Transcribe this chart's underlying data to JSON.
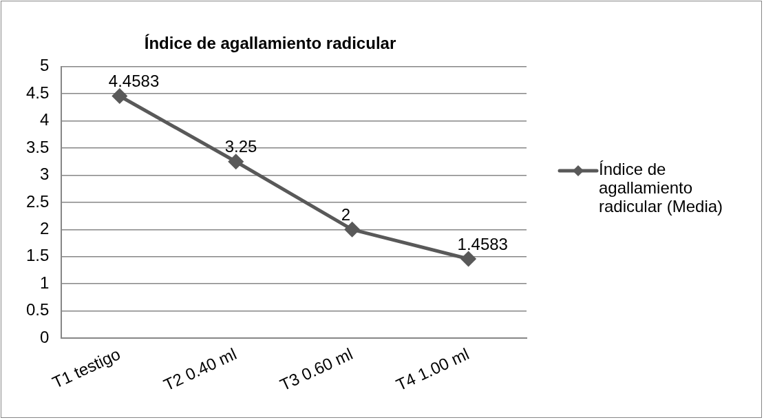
{
  "chart_data": {
    "type": "line",
    "title": "Índice de agallamiento radicular",
    "categories": [
      "T1 testigo",
      "T2 0.40 ml",
      "T3 0.60 ml",
      "T4 1.00 ml"
    ],
    "series": [
      {
        "name": "Índice de agallamiento radicular (Media)",
        "color": "#595959",
        "values": [
          4.4583,
          3.25,
          2,
          1.4583
        ]
      }
    ],
    "ylim": [
      0,
      5
    ],
    "yticks": [
      0,
      0.5,
      1,
      1.5,
      2,
      2.5,
      3,
      3.5,
      4,
      4.5,
      5
    ],
    "grid": "y",
    "legend": "right",
    "marker": "diamond",
    "line_style": "solid",
    "data_labels": true
  }
}
